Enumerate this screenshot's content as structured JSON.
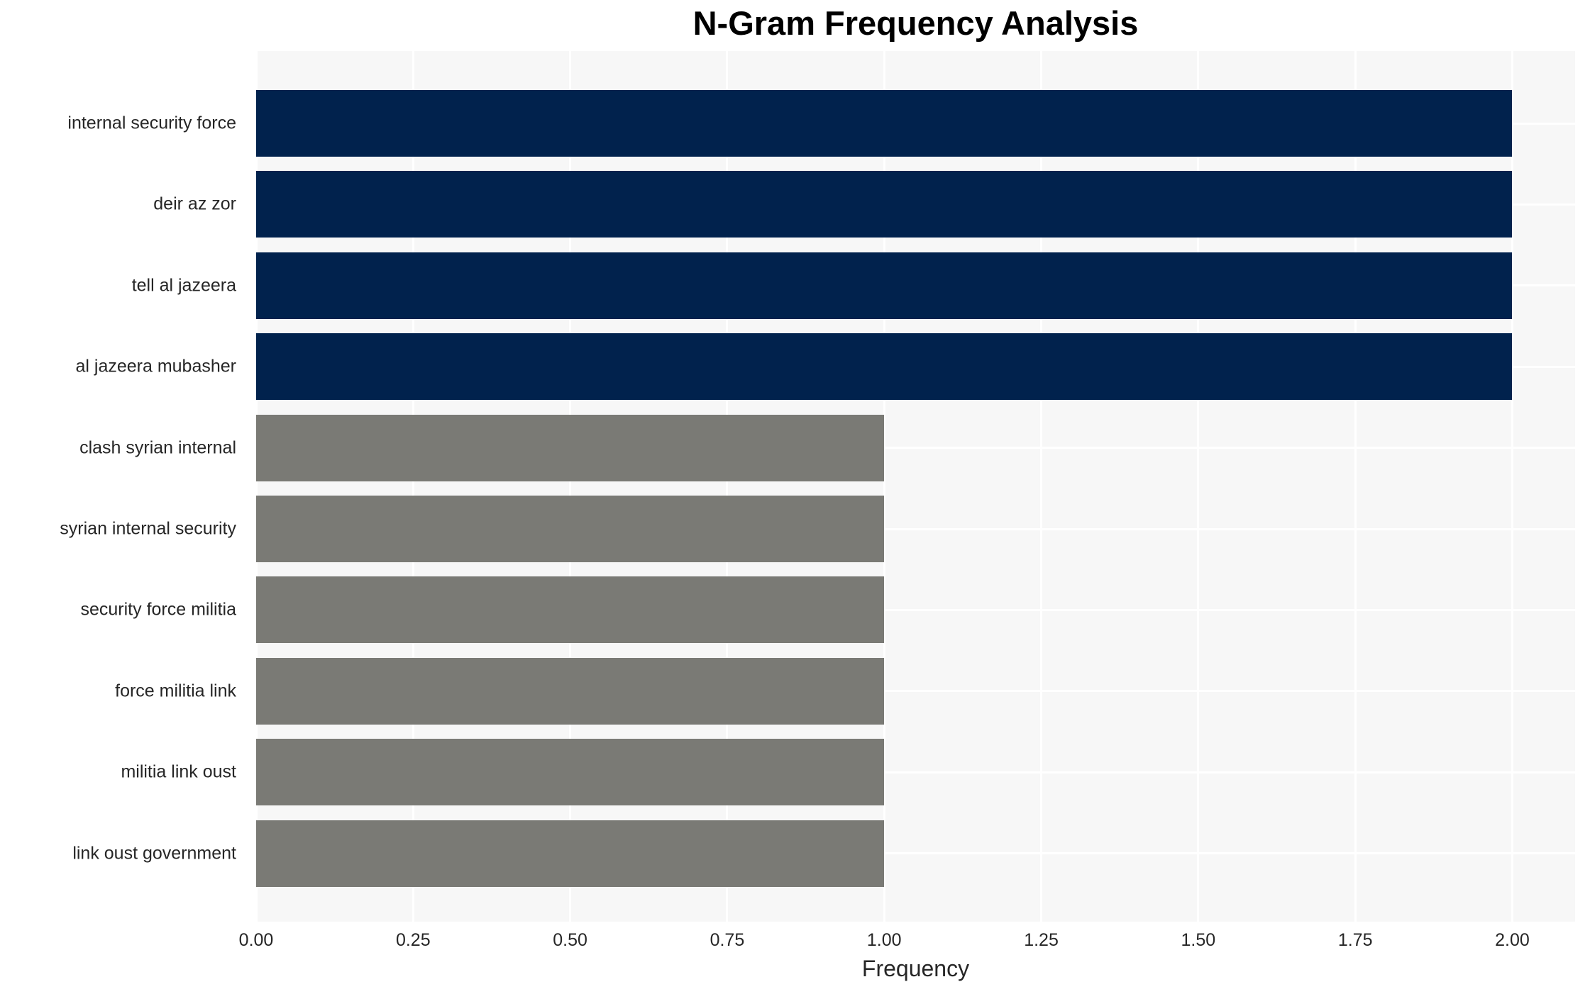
{
  "chart_data": {
    "type": "bar",
    "orientation": "horizontal",
    "title": "N-Gram Frequency Analysis",
    "xlabel": "Frequency",
    "ylabel": "",
    "categories": [
      "internal security force",
      "deir az zor",
      "tell al jazeera",
      "al jazeera mubasher",
      "clash syrian internal",
      "syrian internal security",
      "security force militia",
      "force militia link",
      "militia link oust",
      "link oust government"
    ],
    "values": [
      2,
      2,
      2,
      2,
      1,
      1,
      1,
      1,
      1,
      1
    ],
    "bar_colors": [
      "#01224d",
      "#01224d",
      "#01224d",
      "#01224d",
      "#7a7a75",
      "#7a7a75",
      "#7a7a75",
      "#7a7a75",
      "#7a7a75",
      "#7a7a75"
    ],
    "xlim": [
      0,
      2.1
    ],
    "xticks": [
      0,
      0.25,
      0.5,
      0.75,
      1,
      1.25,
      1.5,
      1.75,
      2
    ],
    "xtick_labels": [
      "0.00",
      "0.25",
      "0.50",
      "0.75",
      "1.00",
      "1.25",
      "1.50",
      "1.75",
      "2.00"
    ],
    "grid": true,
    "legend_position": "none",
    "plot_background": "#f7f7f7",
    "grid_color": "#ffffff",
    "text_color": "#262626",
    "title_color": "#000000"
  }
}
